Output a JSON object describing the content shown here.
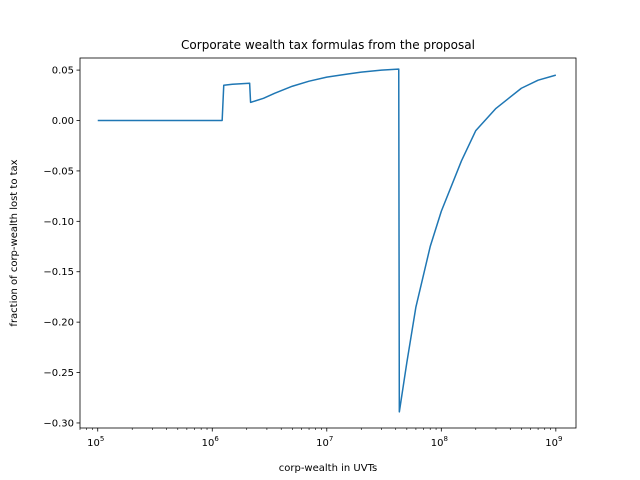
{
  "chart_data": {
    "type": "line",
    "title": "Corporate wealth tax formulas from the proposal",
    "xlabel": "corp-wealth in UVTs",
    "ylabel": "fraction of corp-wealth lost to tax",
    "x_scale": "log",
    "xlim": [
      70000,
      1500000000
    ],
    "ylim": [
      -0.305,
      0.062
    ],
    "grid": false,
    "line_color": "#1f77b4",
    "x_ticks": [
      {
        "value": 100000,
        "base": "10",
        "exp": "5"
      },
      {
        "value": 1000000,
        "base": "10",
        "exp": "6"
      },
      {
        "value": 10000000,
        "base": "10",
        "exp": "7"
      },
      {
        "value": 100000000,
        "base": "10",
        "exp": "8"
      },
      {
        "value": 1000000000,
        "base": "10",
        "exp": "9"
      }
    ],
    "y_ticks": [
      {
        "value": 0.05,
        "label": "0.05"
      },
      {
        "value": 0.0,
        "label": "0.00"
      },
      {
        "value": -0.05,
        "label": "−0.05"
      },
      {
        "value": -0.1,
        "label": "−0.10"
      },
      {
        "value": -0.15,
        "label": "−0.15"
      },
      {
        "value": -0.2,
        "label": "−0.20"
      },
      {
        "value": -0.25,
        "label": "−0.25"
      },
      {
        "value": -0.3,
        "label": "−0.30"
      }
    ],
    "series": [
      {
        "x": [
          100000,
          1000000,
          1220000,
          1260000,
          1500000,
          2120000,
          2160000,
          2800000,
          3500000,
          5000000,
          7000000,
          10000000,
          15000000,
          20000000,
          30000000,
          42000000,
          42500000,
          43000000,
          50000000,
          60000000,
          80000000,
          100000000,
          150000000,
          200000000,
          300000000,
          500000000,
          700000000,
          1000000000
        ],
        "y": [
          0.0,
          0.0,
          0.0,
          0.035,
          0.036,
          0.037,
          0.018,
          0.022,
          0.027,
          0.034,
          0.039,
          0.043,
          0.046,
          0.048,
          0.05,
          0.051,
          0.051,
          -0.289,
          -0.24,
          -0.185,
          -0.125,
          -0.09,
          -0.04,
          -0.01,
          0.012,
          0.032,
          0.04,
          0.045
        ]
      }
    ]
  }
}
